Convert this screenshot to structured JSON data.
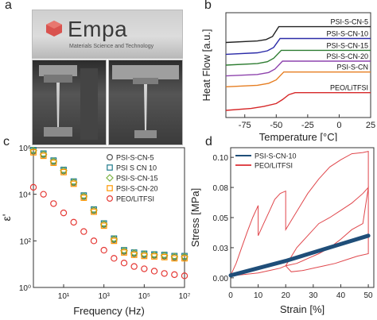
{
  "panels": {
    "a": "a",
    "b": "b",
    "c": "c",
    "d": "d"
  },
  "photo": {
    "logo": "Empa",
    "logo_sub": "Materials Science and Technology"
  },
  "chart_data": [
    {
      "type": "line",
      "panel": "b",
      "xlabel": "Temperature [°C]",
      "ylabel": "Heat Flow [a.u.]",
      "xlim": [
        -90,
        25
      ],
      "x_ticks": [
        -75,
        -50,
        -25,
        0,
        25
      ],
      "x_tick_labels": [
        "-75",
        "-50",
        "-25",
        "0",
        "25"
      ],
      "series": [
        {
          "name": "PSI-S-CN-5",
          "color": "#222222",
          "x": [
            -90,
            -65,
            -58,
            -53,
            -48,
            25
          ],
          "y": [
            7.3,
            7.45,
            7.6,
            7.9,
            8.9,
            8.9
          ]
        },
        {
          "name": "PSI-S-CN-10",
          "color": "#2b2ba8",
          "x": [
            -90,
            -65,
            -57,
            -52,
            -47,
            25
          ],
          "y": [
            6.1,
            6.25,
            6.45,
            6.8,
            7.7,
            7.7
          ]
        },
        {
          "name": "PSI-S-CN-15",
          "color": "#2e7d32",
          "x": [
            -90,
            -65,
            -57,
            -52,
            -46,
            25
          ],
          "y": [
            5.0,
            5.15,
            5.35,
            5.7,
            6.5,
            6.5
          ]
        },
        {
          "name": "PSI-S-CN-20",
          "color": "#8e44ad",
          "x": [
            -90,
            -65,
            -56,
            -51,
            -45,
            25
          ],
          "y": [
            3.9,
            4.05,
            4.25,
            4.6,
            5.4,
            5.4
          ]
        },
        {
          "name": "PSI-S-CN",
          "color": "#e67e22",
          "x": [
            -90,
            -65,
            -56,
            -50,
            -44,
            25
          ],
          "y": [
            2.8,
            2.95,
            3.15,
            3.5,
            4.3,
            4.3
          ]
        },
        {
          "name": "PEO/LiTFSI",
          "color": "#d62728",
          "x": [
            -90,
            -70,
            -60,
            -50,
            -45,
            -40,
            -35,
            25
          ],
          "y": [
            0.4,
            0.6,
            0.8,
            1.1,
            1.5,
            2.0,
            2.2,
            2.2
          ]
        }
      ]
    },
    {
      "type": "scatter",
      "panel": "c",
      "xlabel": "Frequency (Hz)",
      "ylabel": "ε'",
      "xscale": "log",
      "yscale": "log",
      "xlim": [
        -0.5,
        7
      ],
      "ylim": [
        0,
        6
      ],
      "x_ticks": [
        1,
        3,
        5,
        7
      ],
      "x_tick_labels": [
        "10¹",
        "10³",
        "10⁵",
        "10⁷"
      ],
      "y_ticks": [
        0,
        2,
        4,
        6
      ],
      "y_tick_labels": [
        "10⁰",
        "10²",
        "10⁴",
        "10⁶"
      ],
      "series": [
        {
          "name": "PSI-S-CN-5",
          "color": "#555555",
          "x": [
            -0.5,
            0,
            0.5,
            1,
            1.5,
            2,
            2.5,
            3,
            3.5,
            4,
            4.5,
            5,
            5.5,
            6,
            6.5,
            7
          ],
          "y": [
            5.85,
            5.7,
            5.4,
            5.0,
            4.5,
            3.9,
            3.3,
            2.7,
            2.05,
            1.55,
            1.45,
            1.4,
            1.38,
            1.35,
            1.3,
            1.3
          ]
        },
        {
          "name": "PSI S CN 10",
          "color": "#1f7a8c",
          "x": [
            -0.5,
            0,
            0.5,
            1,
            1.5,
            2,
            2.5,
            3,
            3.5,
            4,
            4.5,
            5,
            5.5,
            6,
            6.5,
            7
          ],
          "y": [
            5.9,
            5.75,
            5.45,
            5.05,
            4.55,
            3.95,
            3.35,
            2.75,
            2.1,
            1.6,
            1.5,
            1.45,
            1.42,
            1.4,
            1.35,
            1.35
          ]
        },
        {
          "name": "PSI-S-CN-15",
          "color": "#7cb342",
          "x": [
            -0.5,
            0,
            0.5,
            1,
            1.5,
            2,
            2.5,
            3,
            3.5,
            4,
            4.5,
            5,
            5.5,
            6,
            6.5,
            7
          ],
          "y": [
            5.88,
            5.72,
            5.42,
            5.02,
            4.52,
            3.92,
            3.32,
            2.72,
            2.08,
            1.58,
            1.48,
            1.43,
            1.4,
            1.38,
            1.33,
            1.32
          ]
        },
        {
          "name": "PSI-S-CN-20",
          "color": "#ff9800",
          "x": [
            -0.5,
            0,
            0.5,
            1,
            1.5,
            2,
            2.5,
            3,
            3.5,
            4,
            4.5,
            5,
            5.5,
            6,
            6.5,
            7
          ],
          "y": [
            5.8,
            5.65,
            5.35,
            4.95,
            4.45,
            3.85,
            3.25,
            2.65,
            2.0,
            1.5,
            1.4,
            1.35,
            1.33,
            1.3,
            1.25,
            1.25
          ]
        },
        {
          "name": "PEO/LiTFSI",
          "color": "#e53935",
          "x": [
            -0.5,
            0,
            0.5,
            1,
            1.5,
            2,
            2.5,
            3,
            3.5,
            4,
            4.5,
            5,
            5.5,
            6,
            6.5,
            7
          ],
          "y": [
            4.3,
            4.0,
            3.6,
            3.2,
            2.8,
            2.4,
            2.0,
            1.6,
            1.25,
            1.05,
            0.9,
            0.8,
            0.7,
            0.6,
            0.55,
            0.5
          ]
        }
      ]
    },
    {
      "type": "line",
      "panel": "d",
      "xlabel": "Strain [%]",
      "ylabel": "Stress [MPa]",
      "xlim": [
        0,
        52
      ],
      "ylim": [
        -0.008,
        0.108
      ],
      "x_ticks": [
        0,
        10,
        20,
        30,
        40,
        50
      ],
      "x_tick_labels": [
        "0",
        "10",
        "20",
        "30",
        "40",
        "50"
      ],
      "y_ticks": [
        0,
        0.025,
        0.05,
        0.075,
        0.1
      ],
      "y_tick_labels": [
        "0.00",
        "0.03",
        "0.05",
        "0.08",
        "0.10"
      ],
      "series": [
        {
          "name": "PSI-S-CN-10",
          "color": "#1f4e79",
          "x": [
            0,
            10,
            20,
            30,
            40,
            50
          ],
          "y": [
            0.002,
            0.008,
            0.014,
            0.021,
            0.028,
            0.035
          ]
        },
        {
          "name": "PEO/LiTFSI",
          "color": "#e0474c",
          "x": [
            0,
            2,
            4,
            6,
            8,
            10,
            10,
            12,
            14,
            16,
            18,
            20,
            20,
            24,
            28,
            32,
            36,
            40,
            44,
            48,
            50,
            50,
            46,
            42,
            38,
            34,
            30,
            26,
            22,
            20,
            24,
            28,
            32,
            36,
            40,
            44,
            48,
            50,
            48,
            44,
            40,
            36,
            32,
            28,
            24,
            20,
            18,
            14,
            10,
            6,
            2,
            0
          ],
          "y": [
            0.002,
            0.012,
            0.025,
            0.038,
            0.05,
            0.06,
            0.035,
            0.045,
            0.055,
            0.065,
            0.07,
            0.072,
            0.04,
            0.055,
            0.07,
            0.082,
            0.092,
            0.098,
            0.103,
            0.104,
            0.105,
            0.02,
            0.018,
            0.015,
            0.012,
            0.01,
            0.008,
            0.006,
            0.005,
            0.01,
            0.025,
            0.035,
            0.045,
            0.05,
            0.056,
            0.062,
            0.07,
            0.075,
            0.045,
            0.04,
            0.032,
            0.025,
            0.02,
            0.016,
            0.012,
            0.01,
            0.008,
            0.006,
            0.004,
            0.003,
            0.002,
            0.001
          ]
        }
      ]
    }
  ]
}
